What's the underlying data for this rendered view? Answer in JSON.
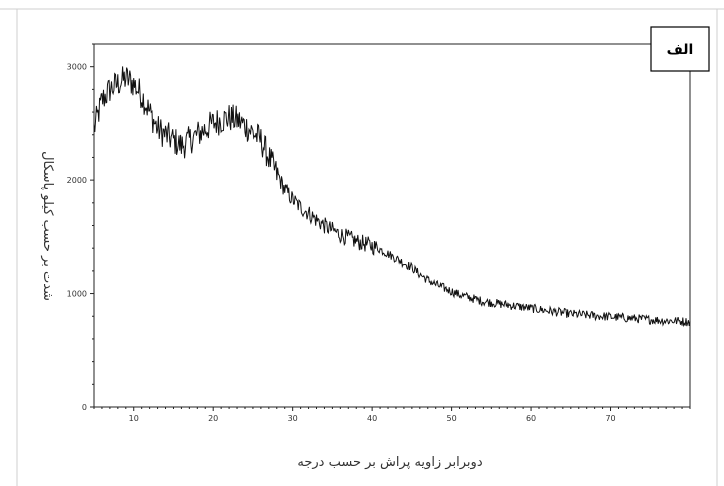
{
  "panel_label": "الف",
  "chart_data": {
    "type": "line",
    "xlabel": "دوبرابر زاویه پراش بر حسب درجه",
    "ylabel": "شدت بر حسب کیلو پاسکال",
    "xlim": [
      5,
      80
    ],
    "ylim": [
      0,
      3200
    ],
    "x_ticks": [
      10,
      20,
      30,
      40,
      50,
      60,
      70
    ],
    "y_ticks": [
      0,
      1000,
      2000,
      3000
    ],
    "grid": false,
    "legend": "none",
    "series": [
      {
        "color": "#111111",
        "x": [
          5,
          6,
          7,
          8,
          9,
          10,
          11,
          12,
          13,
          14,
          15,
          16,
          17,
          18,
          19,
          20,
          21,
          22,
          23,
          24,
          25,
          26,
          27,
          28,
          29,
          30,
          31,
          32,
          33,
          34,
          35,
          36,
          37,
          38,
          39,
          40,
          41,
          42,
          43,
          44,
          45,
          46,
          47,
          48,
          49,
          50,
          51,
          52,
          53,
          54,
          55,
          56,
          57,
          58,
          59,
          60,
          61,
          62,
          63,
          64,
          65,
          66,
          67,
          68,
          69,
          70,
          71,
          72,
          73,
          74,
          75,
          76,
          77,
          78,
          79,
          80
        ],
        "y": [
          2450,
          2700,
          2800,
          2850,
          2900,
          2850,
          2750,
          2600,
          2450,
          2400,
          2350,
          2300,
          2350,
          2400,
          2450,
          2500,
          2530,
          2550,
          2530,
          2480,
          2420,
          2350,
          2200,
          2050,
          1920,
          1830,
          1760,
          1710,
          1650,
          1600,
          1560,
          1520,
          1490,
          1460,
          1440,
          1420,
          1390,
          1350,
          1310,
          1270,
          1230,
          1170,
          1120,
          1080,
          1050,
          1020,
          990,
          970,
          950,
          930,
          920,
          910,
          900,
          890,
          880,
          870,
          860,
          850,
          840,
          830,
          820,
          815,
          810,
          805,
          800,
          795,
          790,
          785,
          780,
          775,
          770,
          765,
          760,
          760,
          755,
          750
        ]
      }
    ]
  }
}
